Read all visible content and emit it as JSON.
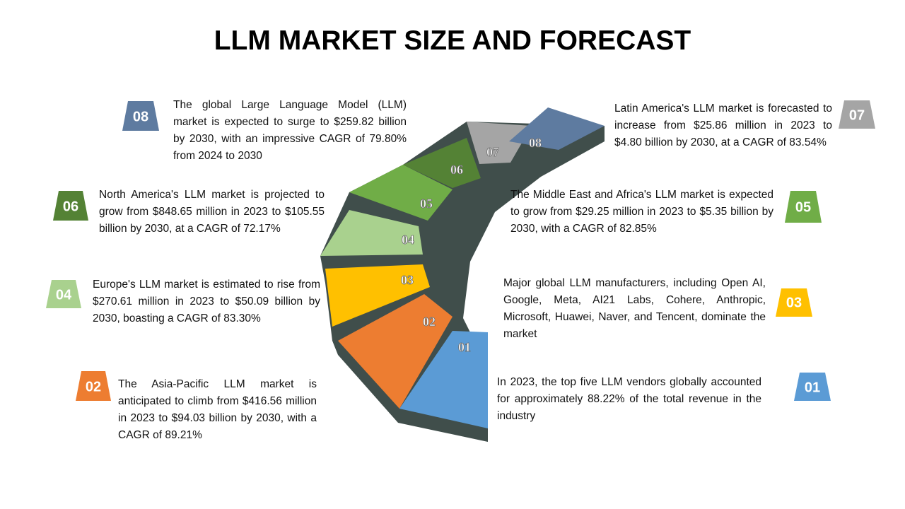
{
  "title": "LLM MARKET SIZE AND FORECAST",
  "items": [
    {
      "number": "01",
      "text": "In 2023, the top five LLM vendors globally accounted for approximately 88.22% of the total revenue in the industry"
    },
    {
      "number": "02",
      "text": "The Asia-Pacific LLM market is anticipated to climb from $416.56 million in 2023 to $94.03 billion by 2030, with a CAGR of 89.21%"
    },
    {
      "number": "03",
      "text": "Major global LLM manufacturers, including Open AI, Google, Meta, AI21 Labs, Cohere, Anthropic, Microsoft, Huawei, Naver, and Tencent, dominate the market"
    },
    {
      "number": "04",
      "text": "Europe's LLM market is estimated to rise from $270.61 million in 2023 to $50.09 billion by 2030, boasting a CAGR of 83.30%"
    },
    {
      "number": "05",
      "text": "The Middle East and Africa's LLM market is expected to grow from $29.25 million in 2023 to $5.35 billion by 2030, with a CAGR of 82.85%"
    },
    {
      "number": "06",
      "text": "North America's LLM market is projected to grow from $848.65 million in 2023 to $105.55 billion by 2030, at a CAGR of 72.17%"
    },
    {
      "number": "07",
      "text": "Latin America's LLM market is forecasted to increase from $25.86 million in 2023 to $4.80 billion by 2030, at a CAGR of 83.54%"
    },
    {
      "number": "08",
      "text": "The global Large Language Model (LLM) market is expected to surge to $259.82 billion by 2030, with an impressive CAGR of 79.80% from 2024 to 2030"
    }
  ]
}
